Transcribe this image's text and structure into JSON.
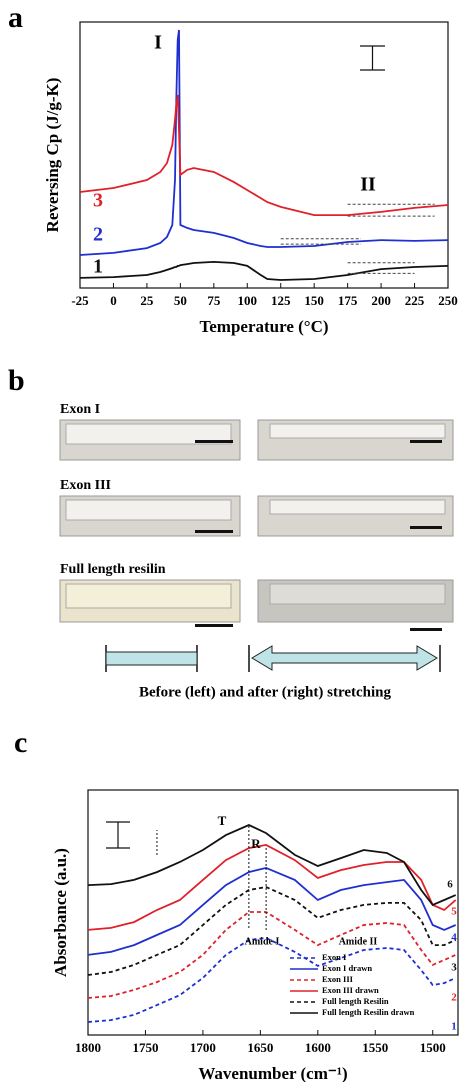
{
  "chart_data": [
    {
      "type": "line",
      "panel_label": "a",
      "xlabel": "Temperature (°C)",
      "ylabel": "Reversing Cp (J/g-K)",
      "xlim": [
        -25,
        250
      ],
      "xticks": [
        -25,
        0,
        25,
        50,
        75,
        100,
        125,
        150,
        175,
        200,
        225,
        250
      ],
      "ylim": [
        0,
        10
      ],
      "annotations": [
        "I",
        "II"
      ],
      "x": [
        -25,
        0,
        25,
        35,
        40,
        44,
        46,
        47,
        48,
        49,
        50,
        55,
        60,
        75,
        90,
        100,
        110,
        115,
        125,
        150,
        175,
        200,
        225,
        250
      ],
      "series": [
        {
          "name": "1",
          "color": "#111111",
          "values": [
            0.38,
            0.41,
            0.49,
            0.6,
            0.68,
            0.75,
            0.79,
            0.79,
            0.83,
            0.83,
            0.86,
            0.9,
            0.94,
            0.98,
            0.94,
            0.83,
            0.49,
            0.34,
            0.3,
            0.34,
            0.49,
            0.71,
            0.79,
            0.83
          ]
        },
        {
          "name": "2",
          "color": "#1f2fd0",
          "values": [
            1.24,
            1.32,
            1.5,
            1.69,
            1.92,
            2.37,
            4.06,
            7.07,
            9.32,
            9.7,
            2.37,
            2.26,
            2.18,
            2.07,
            1.88,
            1.69,
            1.58,
            1.54,
            1.54,
            1.58,
            1.73,
            1.8,
            1.77,
            1.8
          ]
        },
        {
          "name": "3",
          "color": "#e0202a",
          "values": [
            3.61,
            3.76,
            4.06,
            4.36,
            4.7,
            5.38,
            6.32,
            6.88,
            7.26,
            5.94,
            4.25,
            4.44,
            4.51,
            4.36,
            3.98,
            3.68,
            3.38,
            3.23,
            3.05,
            2.74,
            2.74,
            2.86,
            3.01,
            3.12
          ]
        }
      ]
    },
    {
      "type": "line",
      "panel_label": "c",
      "xlabel": "Wavenumber (cm⁻¹)",
      "ylabel": "Absorbance (a.u.)",
      "xlim": [
        1800,
        1478
      ],
      "xticks": [
        1800,
        1750,
        1700,
        1650,
        1600,
        1550,
        1500
      ],
      "ylim": [
        0,
        10
      ],
      "annotations": [
        "T",
        "R",
        "Amide I",
        "Amide II"
      ],
      "x": [
        1800,
        1780,
        1760,
        1740,
        1720,
        1700,
        1680,
        1660,
        1645,
        1620,
        1600,
        1580,
        1560,
        1540,
        1525,
        1510,
        1500,
        1490,
        1480
      ],
      "series": [
        {
          "name": "Exon I",
          "label": "1",
          "color": "#1f2fd0",
          "dashed": true,
          "values": [
            0.53,
            0.61,
            0.82,
            1.22,
            1.63,
            2.33,
            3.27,
            3.88,
            3.96,
            3.39,
            2.82,
            3.14,
            3.47,
            3.55,
            3.47,
            2.65,
            2.04,
            2.12,
            2.33
          ]
        },
        {
          "name": "Exon I drawn",
          "label": "4",
          "color": "#1f2fd0",
          "dashed": false,
          "values": [
            3.27,
            3.39,
            3.67,
            4.08,
            4.49,
            5.31,
            6.12,
            6.65,
            6.82,
            6.33,
            5.51,
            5.92,
            6.12,
            6.24,
            6.33,
            5.51,
            4.49,
            4.29,
            4.49
          ]
        },
        {
          "name": "Exon III",
          "label": "2",
          "color": "#e0202a",
          "dashed": true,
          "values": [
            1.51,
            1.59,
            1.84,
            2.16,
            2.57,
            3.27,
            4.29,
            5.02,
            5.02,
            4.29,
            3.67,
            4.08,
            4.49,
            4.57,
            4.49,
            3.47,
            2.86,
            3.06,
            3.27
          ]
        },
        {
          "name": "Exon III drawn",
          "label": "5",
          "color": "#e0202a",
          "dashed": false,
          "values": [
            4.29,
            4.37,
            4.61,
            5.1,
            5.51,
            6.33,
            7.14,
            7.63,
            7.76,
            7.14,
            6.41,
            6.73,
            6.94,
            7.06,
            7.06,
            6.33,
            5.31,
            5.1,
            5.51
          ]
        },
        {
          "name": "Full length Resilin",
          "label": "3",
          "color": "#111111",
          "dashed": true,
          "values": [
            2.45,
            2.57,
            2.86,
            3.27,
            3.67,
            4.49,
            5.31,
            5.92,
            6.04,
            5.51,
            4.78,
            5.1,
            5.31,
            5.39,
            5.39,
            4.69,
            3.67,
            3.67,
            3.88
          ]
        },
        {
          "name": "Full length Resilin drawn",
          "label": "6",
          "color": "#111111",
          "dashed": false,
          "values": [
            6.12,
            6.16,
            6.33,
            6.65,
            7.06,
            7.55,
            8.16,
            8.57,
            8.24,
            7.35,
            6.9,
            7.22,
            7.55,
            7.43,
            7.06,
            5.92,
            5.31,
            5.51,
            5.71
          ]
        }
      ]
    }
  ],
  "panel_b": {
    "panel_label": "b",
    "rows": [
      "Exon I",
      "Exon III",
      "Full length resilin"
    ],
    "caption": "Before (left) and after (right) stretching"
  }
}
